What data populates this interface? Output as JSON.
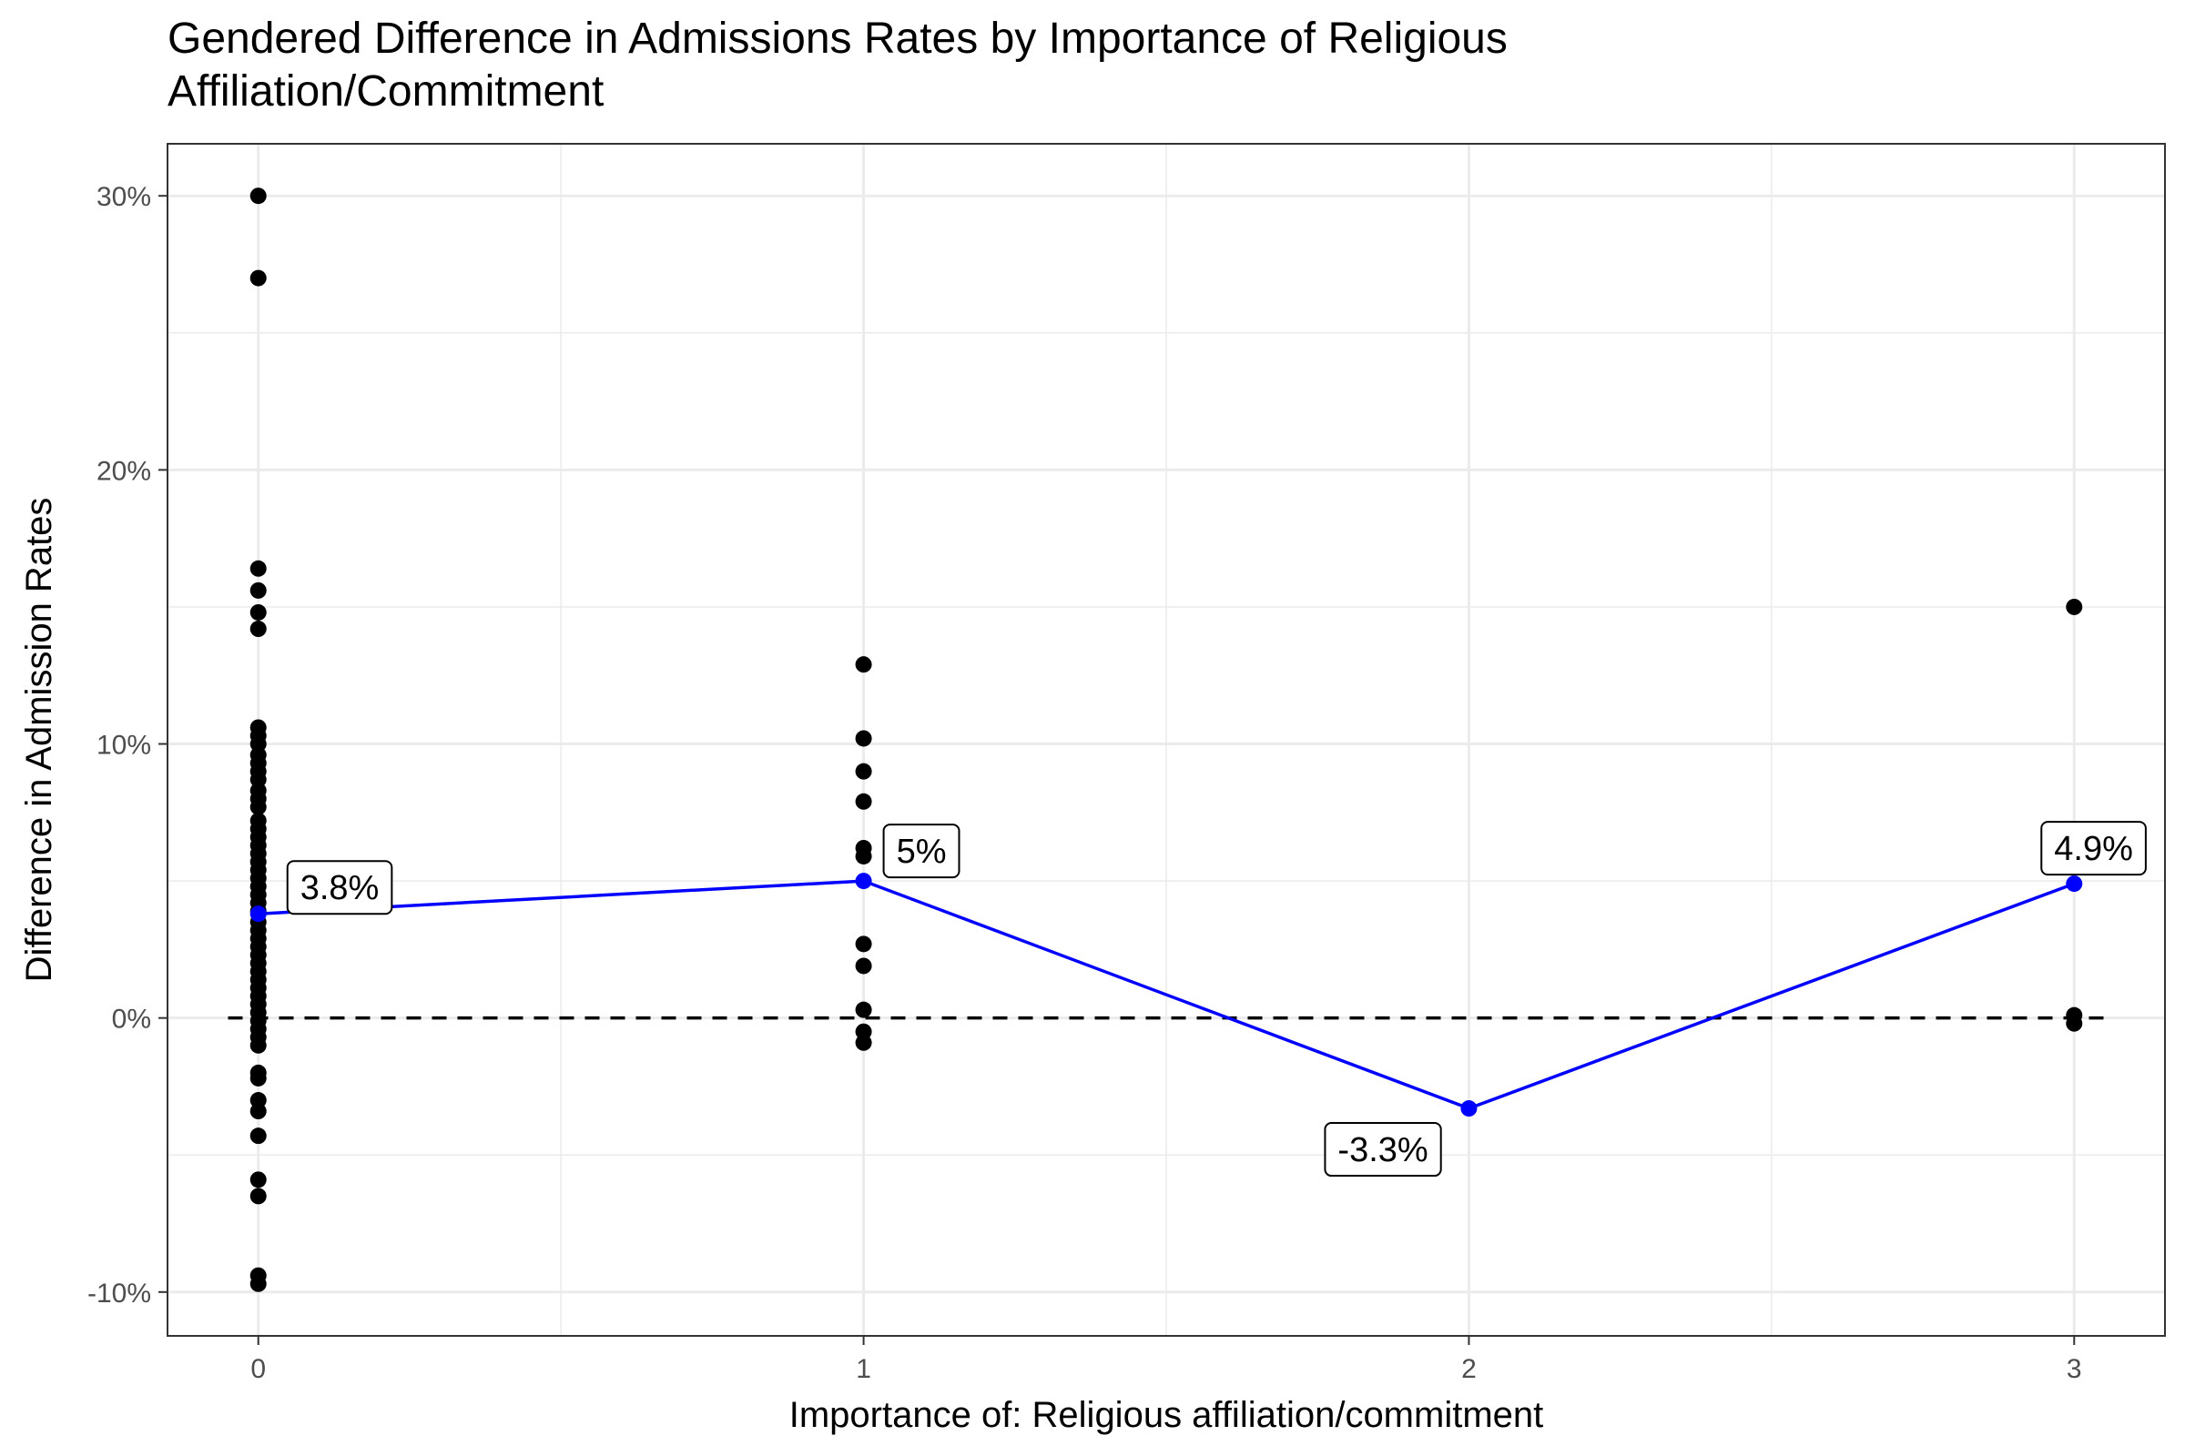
{
  "chart_data": {
    "type": "scatter",
    "title": "Gendered Difference in Admissions Rates by Importance of Religious\nAffiliation/Commitment",
    "xlabel": "Importance of: Religious affiliation/commitment",
    "ylabel": "Difference in Admission Rates",
    "xlim": [
      -0.15,
      3.15
    ],
    "ylim": [
      -11.6,
      31.9
    ],
    "x_ticks": [
      0,
      1,
      2,
      3
    ],
    "x_tick_labels": [
      "0",
      "1",
      "2",
      "3"
    ],
    "y_ticks": [
      -10,
      0,
      10,
      20,
      30
    ],
    "y_tick_labels": [
      "-10%",
      "0%",
      "10%",
      "20%",
      "30%"
    ],
    "grid": true,
    "reference_line": {
      "y": 0,
      "style": "dashed",
      "color": "#000000"
    },
    "colors": {
      "points": "#000000",
      "mean_line": "#0000ff",
      "grid": "#ebebeb",
      "panel_border": "#333333"
    },
    "series": [
      {
        "type": "scatter",
        "points": [
          [
            0,
            30.0
          ],
          [
            0,
            27.0
          ],
          [
            0,
            16.4
          ],
          [
            0,
            15.6
          ],
          [
            0,
            14.8
          ],
          [
            0,
            14.2
          ],
          [
            0,
            10.6
          ],
          [
            0,
            10.3
          ],
          [
            0,
            10.0
          ],
          [
            0,
            9.6
          ],
          [
            0,
            9.3
          ],
          [
            0,
            9.0
          ],
          [
            0,
            8.7
          ],
          [
            0,
            8.3
          ],
          [
            0,
            8.0
          ],
          [
            0,
            7.7
          ],
          [
            0,
            7.2
          ],
          [
            0,
            6.9
          ],
          [
            0,
            6.6
          ],
          [
            0,
            6.3
          ],
          [
            0,
            6.0
          ],
          [
            0,
            5.7
          ],
          [
            0,
            5.4
          ],
          [
            0,
            5.1
          ],
          [
            0,
            4.8
          ],
          [
            0,
            4.5
          ],
          [
            0,
            4.2
          ],
          [
            0,
            3.9
          ],
          [
            0,
            3.5
          ],
          [
            0,
            3.2
          ],
          [
            0,
            2.9
          ],
          [
            0,
            2.6
          ],
          [
            0,
            2.3
          ],
          [
            0,
            2.0
          ],
          [
            0,
            1.7
          ],
          [
            0,
            1.4
          ],
          [
            0,
            1.1
          ],
          [
            0,
            0.8
          ],
          [
            0,
            0.5
          ],
          [
            0,
            0.2
          ],
          [
            0,
            -0.1
          ],
          [
            0,
            -0.4
          ],
          [
            0,
            -0.7
          ],
          [
            0,
            -1.0
          ],
          [
            0,
            -2.0
          ],
          [
            0,
            -2.2
          ],
          [
            0,
            -3.0
          ],
          [
            0,
            -3.4
          ],
          [
            0,
            -4.3
          ],
          [
            0,
            -5.9
          ],
          [
            0,
            -6.5
          ],
          [
            0,
            -9.4
          ],
          [
            0,
            -9.7
          ],
          [
            1,
            12.9
          ],
          [
            1,
            10.2
          ],
          [
            1,
            9.0
          ],
          [
            1,
            7.9
          ],
          [
            1,
            6.2
          ],
          [
            1,
            5.9
          ],
          [
            1,
            2.7
          ],
          [
            1,
            1.9
          ],
          [
            1,
            0.3
          ],
          [
            1,
            -0.5
          ],
          [
            1,
            -0.9
          ],
          [
            3,
            15.0
          ],
          [
            3,
            0.1
          ],
          [
            3,
            -0.2
          ]
        ]
      },
      {
        "type": "line",
        "name": "mean",
        "x": [
          0,
          1,
          2,
          3
        ],
        "y": [
          3.8,
          5.0,
          -3.3,
          4.9
        ]
      }
    ],
    "annotations": [
      "3.8%",
      "5%",
      "-3.3%",
      "4.9%"
    ]
  }
}
